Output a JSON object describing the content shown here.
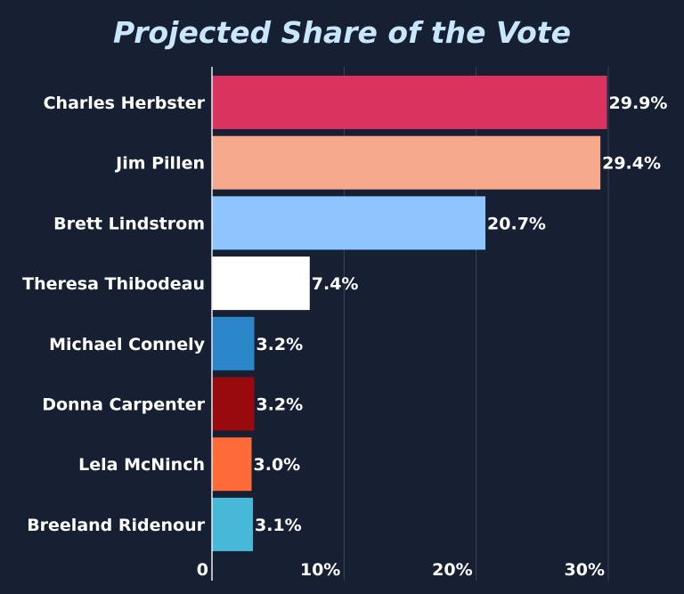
{
  "chart_data": {
    "type": "bar",
    "orientation": "horizontal",
    "title": "Projected Share of the Vote",
    "xlabel": "",
    "ylabel": "",
    "xlim": [
      0,
      30
    ],
    "grid": true,
    "categories": [
      "Charles Herbster",
      "Jim Pillen",
      "Brett Lindstrom",
      "Theresa Thibodeau",
      "Michael Connely",
      "Donna Carpenter",
      "Lela McNinch",
      "Breeland Ridenour"
    ],
    "values": [
      29.9,
      29.4,
      20.7,
      7.4,
      3.2,
      3.2,
      3.0,
      3.1
    ],
    "value_labels": [
      "29.9%",
      "29.4%",
      "20.7%",
      "7.4%",
      "3.2%",
      "3.2%",
      "3.0%",
      "3.1%"
    ],
    "colors": [
      "#d9325e",
      "#f7a98b",
      "#8fc5ff",
      "#ffffff",
      "#2a86c9",
      "#990a0d",
      "#ff6b38",
      "#48b8d8"
    ],
    "ticks": [
      0,
      10,
      20,
      30
    ],
    "tick_labels": [
      "0",
      "10%",
      "20%",
      "30%"
    ]
  }
}
